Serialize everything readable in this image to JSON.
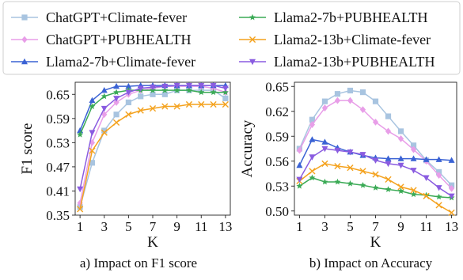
{
  "chart_data": [
    {
      "type": "line",
      "title": "",
      "caption": "a) Impact on F1 score",
      "xlabel": "K",
      "ylabel": "F1 score",
      "x": [
        1,
        2,
        3,
        4,
        5,
        6,
        7,
        8,
        9,
        10,
        11,
        12,
        13
      ],
      "xticks": [
        1,
        3,
        5,
        7,
        9,
        11,
        13
      ],
      "xlim": [
        0.6,
        13.4
      ],
      "ylim": [
        0.35,
        0.68
      ],
      "yticks": [
        "0.35",
        "0.41",
        "0.47",
        "0.53",
        "0.59",
        "0.65"
      ],
      "grid": false,
      "legend_position": "top",
      "series": [
        {
          "name": "ChatGPT+Climate-fever",
          "color": "#a8c4e0",
          "marker": "square",
          "values": [
            0.37,
            0.48,
            0.56,
            0.6,
            0.63,
            0.645,
            0.65,
            0.65,
            0.66,
            0.66,
            0.66,
            0.66,
            0.64
          ]
        },
        {
          "name": "ChatGPT+PUBHEALTH",
          "color": "#e89ee8",
          "marker": "diamond",
          "values": [
            0.38,
            0.53,
            0.6,
            0.63,
            0.65,
            0.66,
            0.665,
            0.67,
            0.67,
            0.67,
            0.67,
            0.665,
            0.655
          ]
        },
        {
          "name": "Llama2-7b+Climate-fever",
          "color": "#3a62d4",
          "marker": "triangle-up",
          "values": [
            0.56,
            0.635,
            0.66,
            0.67,
            0.67,
            0.672,
            0.672,
            0.672,
            0.672,
            0.672,
            0.672,
            0.672,
            0.672
          ]
        },
        {
          "name": "Llama2-7b+PUBHEALTH",
          "color": "#3aaa55",
          "marker": "star",
          "values": [
            0.55,
            0.62,
            0.645,
            0.655,
            0.66,
            0.66,
            0.66,
            0.66,
            0.66,
            0.66,
            0.655,
            0.655,
            0.655
          ]
        },
        {
          "name": "Llama2-13b+Climate-fever",
          "color": "#f4a21e",
          "marker": "x",
          "values": [
            0.365,
            0.51,
            0.555,
            0.58,
            0.6,
            0.61,
            0.615,
            0.62,
            0.62,
            0.625,
            0.625,
            0.625,
            0.625
          ]
        },
        {
          "name": "Llama2-13b+PUBHEALTH",
          "color": "#8a5ce0",
          "marker": "triangle-down",
          "values": [
            0.415,
            0.555,
            0.615,
            0.64,
            0.655,
            0.665,
            0.668,
            0.67,
            0.672,
            0.672,
            0.672,
            0.672,
            0.665
          ]
        }
      ]
    },
    {
      "type": "line",
      "title": "",
      "caption": "b) Impact on Accuracy",
      "xlabel": "K",
      "ylabel": "Accuracy",
      "x": [
        1,
        2,
        3,
        4,
        5,
        6,
        7,
        8,
        9,
        10,
        11,
        12,
        13
      ],
      "xticks": [
        1,
        3,
        5,
        7,
        9,
        11,
        13
      ],
      "xlim": [
        0.6,
        13.4
      ],
      "ylim": [
        0.495,
        0.655
      ],
      "yticks": [
        "0.50",
        "0.53",
        "0.56",
        "0.59",
        "0.62",
        "0.65"
      ],
      "grid": false,
      "legend_position": "top",
      "series": [
        {
          "name": "ChatGPT+Climate-fever",
          "color": "#a8c4e0",
          "marker": "square",
          "values": [
            0.575,
            0.61,
            0.632,
            0.641,
            0.645,
            0.643,
            0.632,
            0.614,
            0.596,
            0.579,
            0.561,
            0.547,
            0.531
          ]
        },
        {
          "name": "ChatGPT+PUBHEALTH",
          "color": "#e89ee8",
          "marker": "diamond",
          "values": [
            0.573,
            0.604,
            0.624,
            0.633,
            0.633,
            0.622,
            0.607,
            0.596,
            0.587,
            0.574,
            0.56,
            0.543,
            0.527
          ]
        },
        {
          "name": "Llama2-7b+Climate-fever",
          "color": "#3a62d4",
          "marker": "triangle-up",
          "values": [
            0.555,
            0.586,
            0.583,
            0.576,
            0.571,
            0.567,
            0.564,
            0.563,
            0.563,
            0.563,
            0.562,
            0.562,
            0.561
          ]
        },
        {
          "name": "Llama2-7b+PUBHEALTH",
          "color": "#3aaa55",
          "marker": "star",
          "values": [
            0.53,
            0.54,
            0.535,
            0.535,
            0.533,
            0.531,
            0.528,
            0.526,
            0.524,
            0.52,
            0.519,
            0.517,
            0.516
          ]
        },
        {
          "name": "Llama2-13b+Climate-fever",
          "color": "#f4a21e",
          "marker": "x",
          "values": [
            0.536,
            0.548,
            0.557,
            0.554,
            0.552,
            0.548,
            0.544,
            0.538,
            0.529,
            0.525,
            0.518,
            0.507,
            0.498
          ]
        },
        {
          "name": "Llama2-13b+PUBHEALTH",
          "color": "#8a5ce0",
          "marker": "triangle-down",
          "values": [
            0.538,
            0.565,
            0.575,
            0.573,
            0.571,
            0.568,
            0.561,
            0.557,
            0.555,
            0.549,
            0.54,
            0.528,
            0.518
          ]
        }
      ]
    }
  ]
}
